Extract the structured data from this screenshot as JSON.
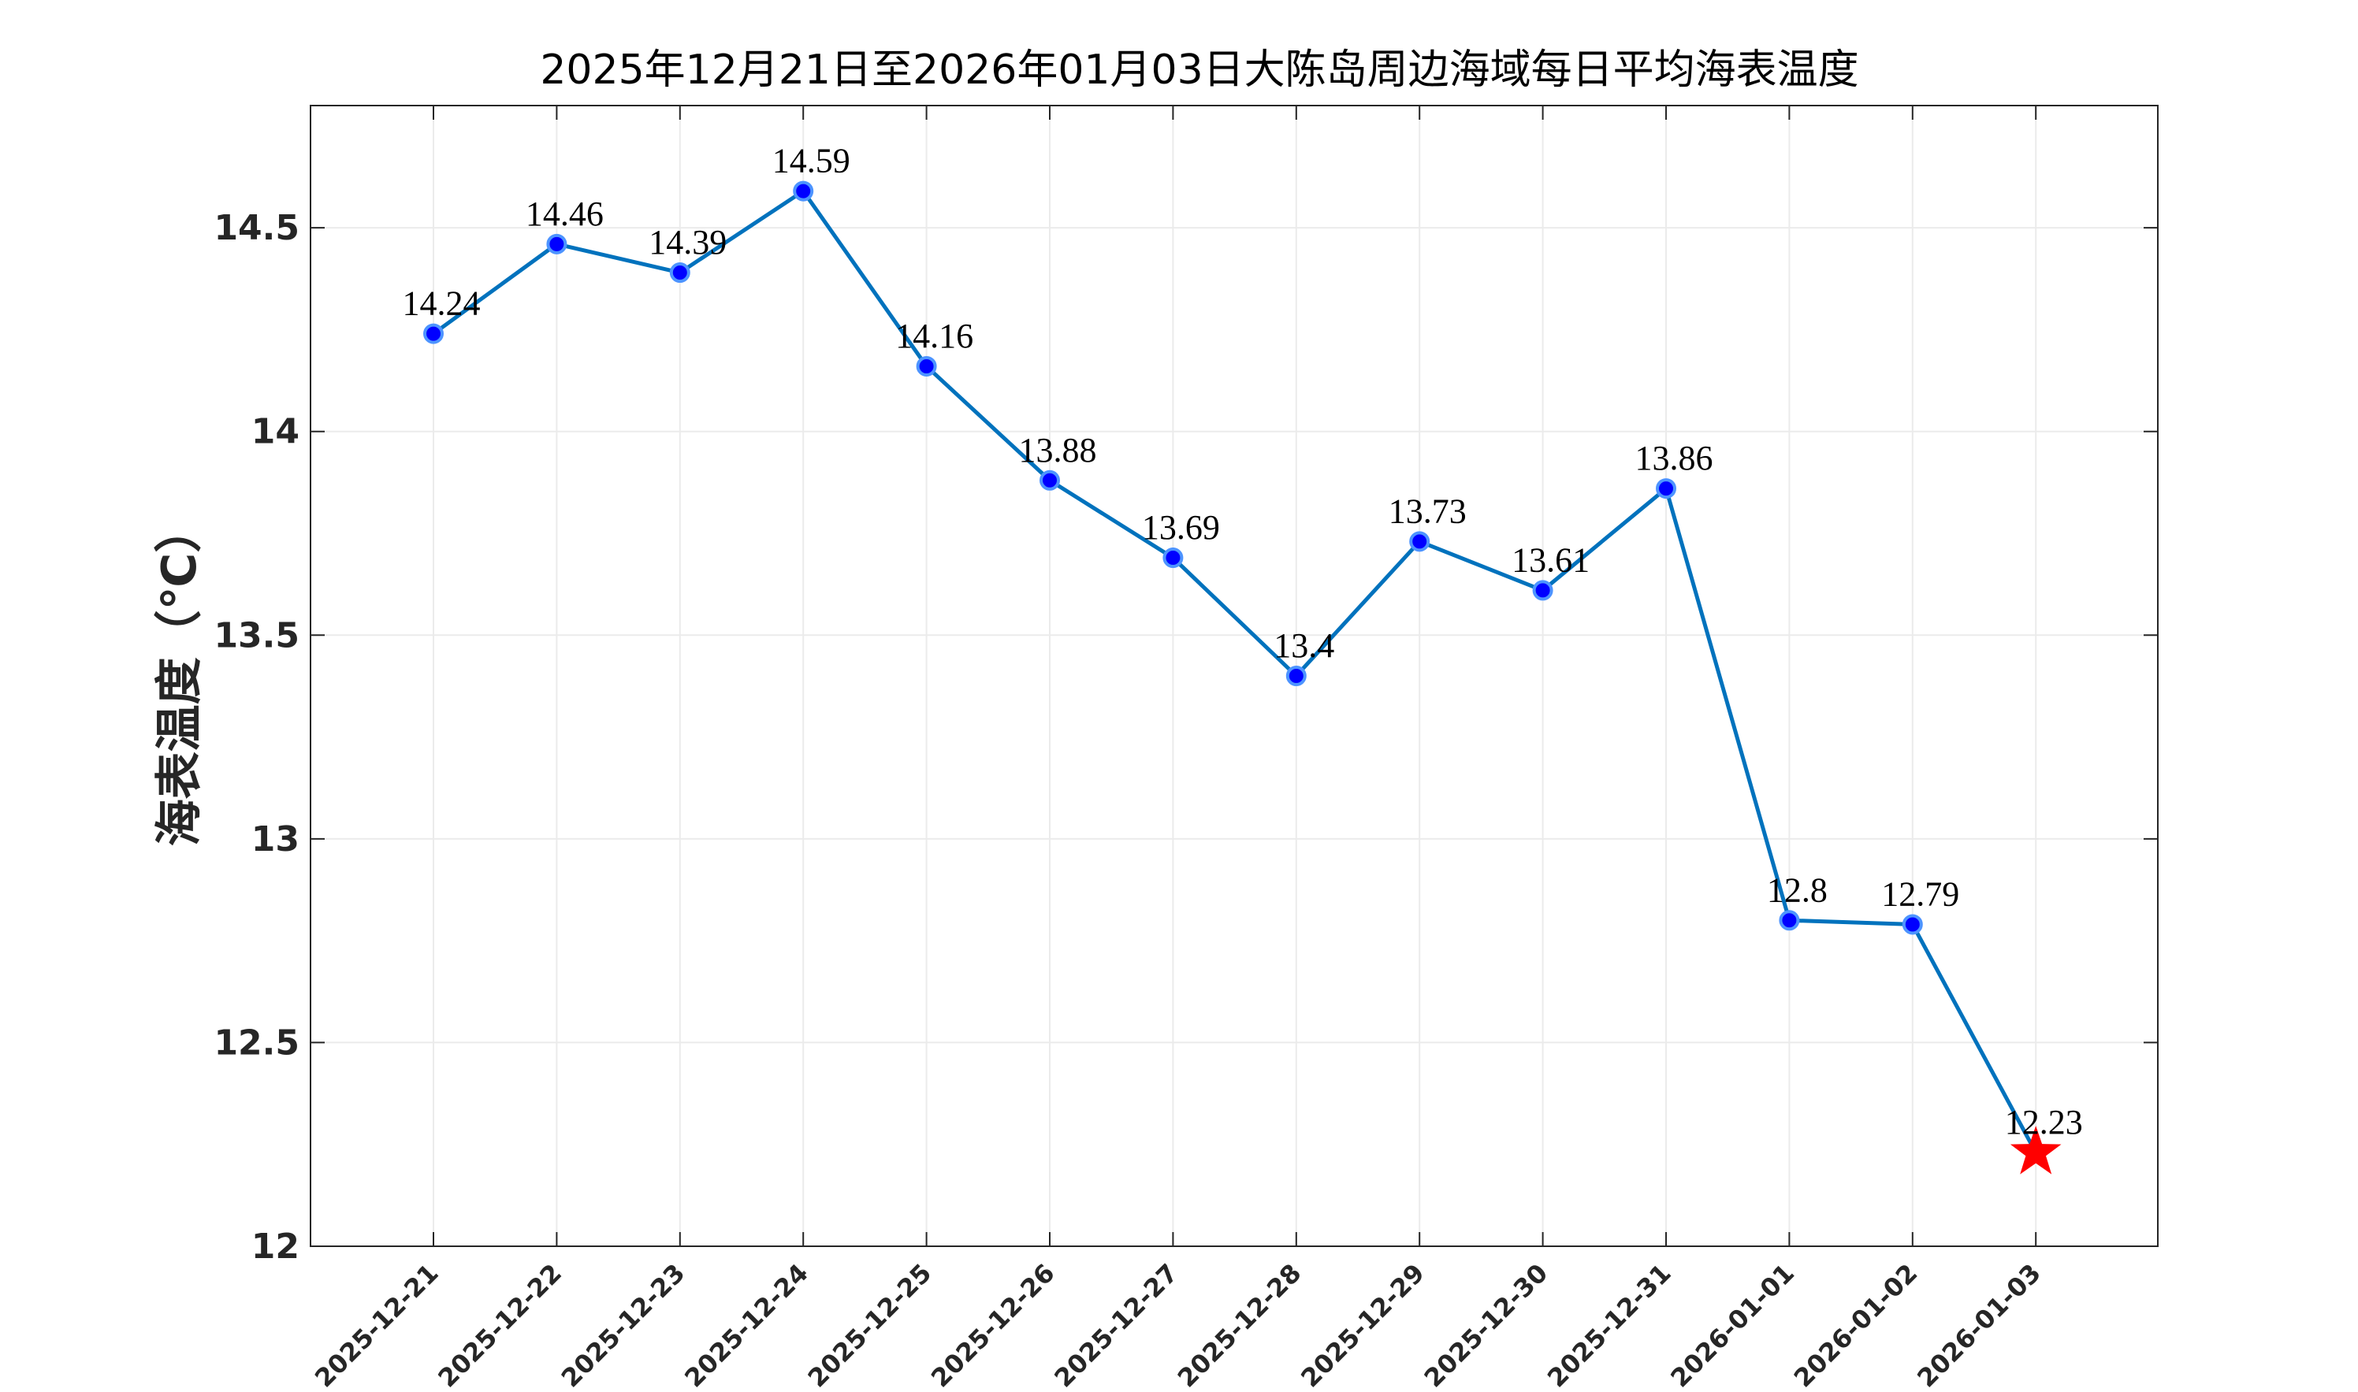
{
  "chart_data": {
    "type": "line",
    "title": "2025年12月21日至2026年01月03日大陈岛周边海域每日平均海表温度",
    "xlabel": "",
    "ylabel": "海表温度（℃）",
    "ylim": [
      12,
      14.8
    ],
    "yticks": [
      12,
      12.5,
      13,
      13.5,
      14,
      14.5
    ],
    "ytick_labels": [
      "12",
      "12.5",
      "13",
      "13.5",
      "14",
      "14.5"
    ],
    "grid": true,
    "categories": [
      "2025-12-21",
      "2025-12-22",
      "2025-12-23",
      "2025-12-24",
      "2025-12-25",
      "2025-12-26",
      "2025-12-27",
      "2025-12-28",
      "2025-12-29",
      "2025-12-30",
      "2025-12-31",
      "2026-01-01",
      "2026-01-02",
      "2026-01-03"
    ],
    "series": [
      {
        "values": [
          14.24,
          14.46,
          14.39,
          14.59,
          14.16,
          13.88,
          13.69,
          13.4,
          13.73,
          13.61,
          13.86,
          12.8,
          12.79,
          12.23
        ],
        "labels": [
          "14.24",
          "14.46",
          "14.39",
          "14.59",
          "14.16",
          "13.88",
          "13.69",
          "13.4",
          "13.73",
          "13.61",
          "13.86",
          "12.8",
          "12.79",
          "12.23"
        ],
        "line_color": "#0072bd",
        "marker_color": "#0000ff",
        "marker_edge_color": "#4d94ff",
        "highlight_last_marker": "star",
        "highlight_color": "#ff0000"
      }
    ]
  }
}
